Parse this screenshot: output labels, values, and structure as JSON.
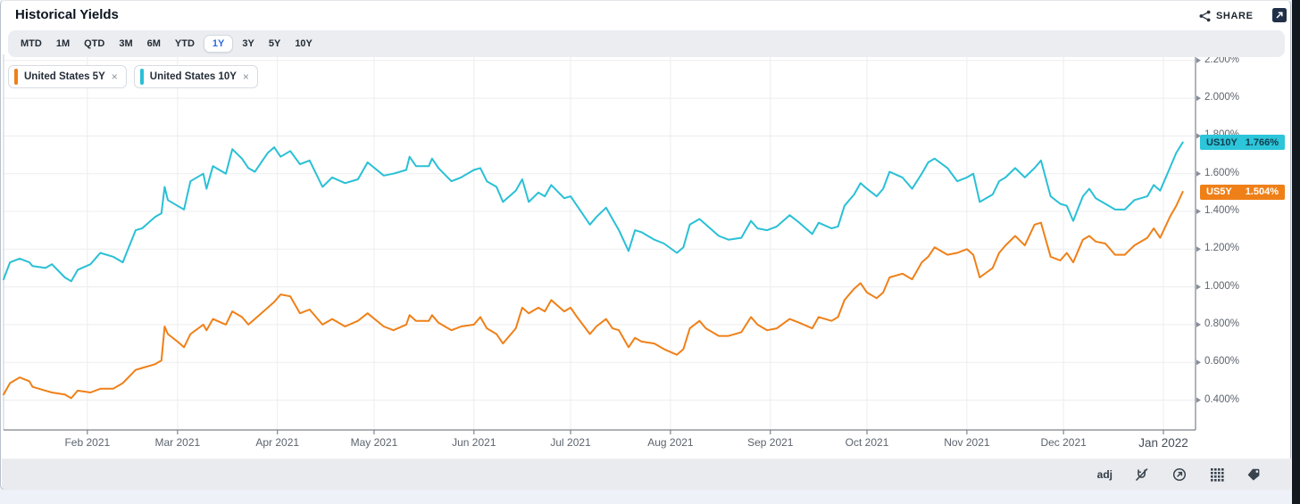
{
  "header": {
    "title": "Historical Yields",
    "share_label": "SHARE"
  },
  "tabs": {
    "items": [
      "MTD",
      "1M",
      "QTD",
      "3M",
      "6M",
      "YTD",
      "1Y",
      "3Y",
      "5Y",
      "10Y"
    ],
    "selected": "1Y"
  },
  "legend": [
    {
      "label": "United States 5Y",
      "close_glyph": "×",
      "color": "#ef8018"
    },
    {
      "label": "United States 10Y",
      "close_glyph": "×",
      "color": "#29c0d6"
    }
  ],
  "footer": {
    "adj_label": "adj"
  },
  "colors": {
    "us5y": "#ef8018",
    "us10y": "#29c0d6",
    "us10y_label_bg": "#2cc5d9",
    "us10y_label_text": "#113c4e",
    "us5y_label_bg": "#ef8018",
    "us5y_label_text": "#ffffff",
    "grid": "#ededf0",
    "axis": "#7d848e",
    "tick": "#868d97",
    "accent_blue": "#2d6ce0"
  },
  "chart_data": {
    "type": "line",
    "title": "Historical Yields",
    "grid": true,
    "legend_position": "top-left",
    "x_axis": {
      "unit": "date",
      "start": "Jan 2021",
      "end": "Jan 2022",
      "months": [
        {
          "label": "Feb 2021",
          "day": 26
        },
        {
          "label": "Mar 2021",
          "day": 54
        },
        {
          "label": "Apr 2021",
          "day": 85
        },
        {
          "label": "May 2021",
          "day": 115
        },
        {
          "label": "Jun 2021",
          "day": 146
        },
        {
          "label": "Jul 2021",
          "day": 176
        },
        {
          "label": "Aug 2021",
          "day": 207
        },
        {
          "label": "Sep 2021",
          "day": 238
        },
        {
          "label": "Oct 2021",
          "day": 268
        },
        {
          "label": "Nov 2021",
          "day": 299
        },
        {
          "label": "Dec 2021",
          "day": 329
        },
        {
          "label": "Jan 2022",
          "day": 360,
          "emphasis": true
        }
      ]
    },
    "y_axis": {
      "unit": "percent",
      "tick_values": [
        2.2,
        2.0,
        1.8,
        1.6,
        1.4,
        1.2,
        1.0,
        0.8,
        0.6,
        0.4
      ],
      "tick_labels": [
        "2.200%",
        "2.000%",
        "1.800%",
        "1.600%",
        "1.400%",
        "1.200%",
        "1.000%",
        "0.800%",
        "0.600%",
        "0.400%"
      ],
      "range": [
        0.24,
        2.23
      ]
    },
    "series": [
      {
        "name": "US10Y",
        "display": "United States 10Y",
        "color": "#29c0d6",
        "last_label": {
          "ticker": "US10Y",
          "value": "1.766%"
        },
        "points": [
          [
            0,
            1.04
          ],
          [
            2,
            1.13
          ],
          [
            5,
            1.15
          ],
          [
            8,
            1.13
          ],
          [
            9,
            1.11
          ],
          [
            13,
            1.1
          ],
          [
            15,
            1.12
          ],
          [
            19,
            1.05
          ],
          [
            21,
            1.03
          ],
          [
            23,
            1.09
          ],
          [
            27,
            1.12
          ],
          [
            30,
            1.18
          ],
          [
            34,
            1.16
          ],
          [
            37,
            1.13
          ],
          [
            41,
            1.3
          ],
          [
            43,
            1.31
          ],
          [
            47,
            1.37
          ],
          [
            49,
            1.39
          ],
          [
            50,
            1.53
          ],
          [
            51,
            1.46
          ],
          [
            54,
            1.43
          ],
          [
            56,
            1.41
          ],
          [
            58,
            1.56
          ],
          [
            62,
            1.6
          ],
          [
            63,
            1.52
          ],
          [
            65,
            1.64
          ],
          [
            69,
            1.6
          ],
          [
            71,
            1.73
          ],
          [
            74,
            1.68
          ],
          [
            76,
            1.63
          ],
          [
            78,
            1.61
          ],
          [
            82,
            1.71
          ],
          [
            84,
            1.74
          ],
          [
            86,
            1.69
          ],
          [
            89,
            1.72
          ],
          [
            92,
            1.65
          ],
          [
            95,
            1.67
          ],
          [
            99,
            1.53
          ],
          [
            102,
            1.58
          ],
          [
            106,
            1.55
          ],
          [
            110,
            1.57
          ],
          [
            113,
            1.66
          ],
          [
            118,
            1.59
          ],
          [
            121,
            1.6
          ],
          [
            125,
            1.62
          ],
          [
            126,
            1.69
          ],
          [
            128,
            1.64
          ],
          [
            132,
            1.64
          ],
          [
            133,
            1.68
          ],
          [
            135,
            1.63
          ],
          [
            139,
            1.56
          ],
          [
            142,
            1.58
          ],
          [
            146,
            1.62
          ],
          [
            148,
            1.63
          ],
          [
            150,
            1.56
          ],
          [
            153,
            1.53
          ],
          [
            155,
            1.45
          ],
          [
            159,
            1.51
          ],
          [
            161,
            1.57
          ],
          [
            163,
            1.45
          ],
          [
            166,
            1.5
          ],
          [
            168,
            1.48
          ],
          [
            170,
            1.54
          ],
          [
            174,
            1.47
          ],
          [
            176,
            1.48
          ],
          [
            178,
            1.43
          ],
          [
            182,
            1.33
          ],
          [
            184,
            1.37
          ],
          [
            187,
            1.42
          ],
          [
            189,
            1.36
          ],
          [
            191,
            1.3
          ],
          [
            194,
            1.19
          ],
          [
            196,
            1.3
          ],
          [
            198,
            1.29
          ],
          [
            202,
            1.25
          ],
          [
            205,
            1.23
          ],
          [
            209,
            1.18
          ],
          [
            211,
            1.21
          ],
          [
            213,
            1.33
          ],
          [
            216,
            1.36
          ],
          [
            218,
            1.33
          ],
          [
            222,
            1.27
          ],
          [
            225,
            1.25
          ],
          [
            229,
            1.26
          ],
          [
            232,
            1.35
          ],
          [
            234,
            1.31
          ],
          [
            237,
            1.3
          ],
          [
            240,
            1.32
          ],
          [
            244,
            1.38
          ],
          [
            247,
            1.34
          ],
          [
            251,
            1.28
          ],
          [
            253,
            1.34
          ],
          [
            257,
            1.31
          ],
          [
            259,
            1.32
          ],
          [
            261,
            1.43
          ],
          [
            264,
            1.49
          ],
          [
            266,
            1.55
          ],
          [
            268,
            1.52
          ],
          [
            271,
            1.48
          ],
          [
            273,
            1.52
          ],
          [
            275,
            1.61
          ],
          [
            279,
            1.58
          ],
          [
            282,
            1.52
          ],
          [
            285,
            1.6
          ],
          [
            287,
            1.66
          ],
          [
            289,
            1.68
          ],
          [
            293,
            1.63
          ],
          [
            296,
            1.56
          ],
          [
            299,
            1.58
          ],
          [
            301,
            1.6
          ],
          [
            303,
            1.45
          ],
          [
            307,
            1.49
          ],
          [
            309,
            1.56
          ],
          [
            311,
            1.58
          ],
          [
            314,
            1.63
          ],
          [
            317,
            1.58
          ],
          [
            320,
            1.63
          ],
          [
            322,
            1.67
          ],
          [
            325,
            1.48
          ],
          [
            328,
            1.44
          ],
          [
            330,
            1.43
          ],
          [
            332,
            1.35
          ],
          [
            335,
            1.48
          ],
          [
            337,
            1.52
          ],
          [
            339,
            1.47
          ],
          [
            342,
            1.44
          ],
          [
            345,
            1.41
          ],
          [
            348,
            1.41
          ],
          [
            351,
            1.46
          ],
          [
            355,
            1.48
          ],
          [
            357,
            1.54
          ],
          [
            359,
            1.51
          ],
          [
            362,
            1.63
          ],
          [
            364,
            1.71
          ],
          [
            366,
            1.766
          ]
        ]
      },
      {
        "name": "US5Y",
        "display": "United States 5Y",
        "color": "#ef8018",
        "last_label": {
          "ticker": "US5Y",
          "value": "1.504%"
        },
        "points": [
          [
            0,
            0.43
          ],
          [
            2,
            0.49
          ],
          [
            5,
            0.52
          ],
          [
            8,
            0.5
          ],
          [
            9,
            0.47
          ],
          [
            13,
            0.45
          ],
          [
            15,
            0.44
          ],
          [
            19,
            0.43
          ],
          [
            21,
            0.41
          ],
          [
            23,
            0.45
          ],
          [
            27,
            0.44
          ],
          [
            30,
            0.46
          ],
          [
            34,
            0.46
          ],
          [
            37,
            0.49
          ],
          [
            41,
            0.56
          ],
          [
            43,
            0.57
          ],
          [
            47,
            0.59
          ],
          [
            49,
            0.61
          ],
          [
            50,
            0.79
          ],
          [
            51,
            0.75
          ],
          [
            54,
            0.71
          ],
          [
            56,
            0.68
          ],
          [
            58,
            0.75
          ],
          [
            62,
            0.8
          ],
          [
            63,
            0.77
          ],
          [
            65,
            0.83
          ],
          [
            69,
            0.8
          ],
          [
            71,
            0.87
          ],
          [
            74,
            0.84
          ],
          [
            76,
            0.8
          ],
          [
            78,
            0.83
          ],
          [
            82,
            0.89
          ],
          [
            84,
            0.92
          ],
          [
            86,
            0.96
          ],
          [
            89,
            0.95
          ],
          [
            92,
            0.86
          ],
          [
            95,
            0.88
          ],
          [
            99,
            0.8
          ],
          [
            102,
            0.83
          ],
          [
            106,
            0.79
          ],
          [
            110,
            0.82
          ],
          [
            113,
            0.86
          ],
          [
            118,
            0.79
          ],
          [
            121,
            0.77
          ],
          [
            125,
            0.8
          ],
          [
            126,
            0.85
          ],
          [
            128,
            0.82
          ],
          [
            132,
            0.82
          ],
          [
            133,
            0.85
          ],
          [
            135,
            0.81
          ],
          [
            139,
            0.77
          ],
          [
            142,
            0.79
          ],
          [
            146,
            0.8
          ],
          [
            148,
            0.84
          ],
          [
            150,
            0.78
          ],
          [
            153,
            0.75
          ],
          [
            155,
            0.7
          ],
          [
            159,
            0.78
          ],
          [
            161,
            0.89
          ],
          [
            163,
            0.86
          ],
          [
            166,
            0.89
          ],
          [
            168,
            0.87
          ],
          [
            170,
            0.93
          ],
          [
            174,
            0.87
          ],
          [
            176,
            0.89
          ],
          [
            178,
            0.84
          ],
          [
            182,
            0.75
          ],
          [
            184,
            0.79
          ],
          [
            187,
            0.83
          ],
          [
            189,
            0.78
          ],
          [
            191,
            0.77
          ],
          [
            194,
            0.68
          ],
          [
            196,
            0.73
          ],
          [
            198,
            0.71
          ],
          [
            202,
            0.7
          ],
          [
            205,
            0.67
          ],
          [
            209,
            0.64
          ],
          [
            211,
            0.67
          ],
          [
            213,
            0.78
          ],
          [
            216,
            0.82
          ],
          [
            218,
            0.78
          ],
          [
            222,
            0.74
          ],
          [
            225,
            0.74
          ],
          [
            229,
            0.76
          ],
          [
            232,
            0.84
          ],
          [
            234,
            0.8
          ],
          [
            237,
            0.77
          ],
          [
            240,
            0.78
          ],
          [
            244,
            0.83
          ],
          [
            247,
            0.81
          ],
          [
            251,
            0.78
          ],
          [
            253,
            0.84
          ],
          [
            257,
            0.82
          ],
          [
            259,
            0.84
          ],
          [
            261,
            0.93
          ],
          [
            264,
            0.99
          ],
          [
            266,
            1.02
          ],
          [
            268,
            0.97
          ],
          [
            271,
            0.94
          ],
          [
            273,
            0.97
          ],
          [
            275,
            1.05
          ],
          [
            279,
            1.07
          ],
          [
            282,
            1.04
          ],
          [
            285,
            1.13
          ],
          [
            287,
            1.16
          ],
          [
            289,
            1.21
          ],
          [
            293,
            1.17
          ],
          [
            296,
            1.18
          ],
          [
            299,
            1.2
          ],
          [
            301,
            1.17
          ],
          [
            303,
            1.05
          ],
          [
            307,
            1.1
          ],
          [
            309,
            1.18
          ],
          [
            311,
            1.22
          ],
          [
            314,
            1.27
          ],
          [
            317,
            1.22
          ],
          [
            320,
            1.33
          ],
          [
            322,
            1.34
          ],
          [
            325,
            1.16
          ],
          [
            328,
            1.14
          ],
          [
            330,
            1.18
          ],
          [
            332,
            1.13
          ],
          [
            335,
            1.25
          ],
          [
            337,
            1.27
          ],
          [
            339,
            1.24
          ],
          [
            342,
            1.23
          ],
          [
            345,
            1.17
          ],
          [
            348,
            1.17
          ],
          [
            351,
            1.22
          ],
          [
            355,
            1.26
          ],
          [
            357,
            1.31
          ],
          [
            359,
            1.26
          ],
          [
            362,
            1.37
          ],
          [
            364,
            1.43
          ],
          [
            366,
            1.504
          ]
        ]
      }
    ]
  }
}
